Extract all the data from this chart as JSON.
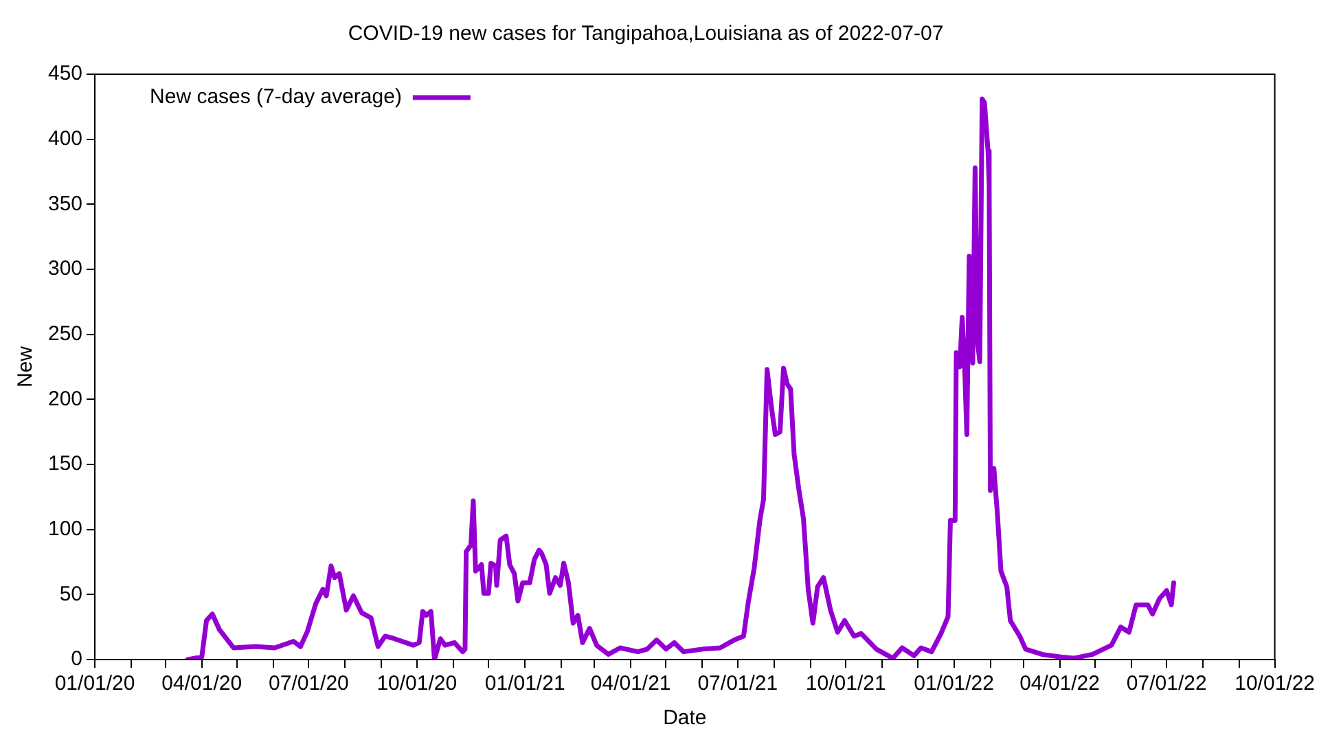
{
  "chart_data": {
    "type": "line",
    "title": "COVID-19 new cases for Tangipahoa,Louisiana as of 2022-07-07",
    "xlabel": "Date",
    "ylabel": "New",
    "x": [
      "2020-03-20",
      "2020-04-01",
      "2020-04-05",
      "2020-04-10",
      "2020-04-16",
      "2020-04-28",
      "2020-05-17",
      "2020-06-02",
      "2020-06-18",
      "2020-06-24",
      "2020-06-30",
      "2020-07-07",
      "2020-07-13",
      "2020-07-16",
      "2020-07-20",
      "2020-07-23",
      "2020-07-27",
      "2020-08-02",
      "2020-08-08",
      "2020-08-15",
      "2020-08-23",
      "2020-08-29",
      "2020-09-04",
      "2020-09-12",
      "2020-09-28",
      "2020-10-03",
      "2020-10-06",
      "2020-10-09",
      "2020-10-13",
      "2020-10-16",
      "2020-10-21",
      "2020-10-25",
      "2020-11-02",
      "2020-11-09",
      "2020-11-11",
      "2020-11-12",
      "2020-11-16",
      "2020-11-18",
      "2020-11-20",
      "2020-11-25",
      "2020-11-27",
      "2020-12-01",
      "2020-12-03",
      "2020-12-07",
      "2020-12-08",
      "2020-12-11",
      "2020-12-16",
      "2020-12-19",
      "2020-12-23",
      "2020-12-26",
      "2020-12-30",
      "2021-01-05",
      "2021-01-09",
      "2021-01-13",
      "2021-01-15",
      "2021-01-19",
      "2021-01-22",
      "2021-01-27",
      "2021-01-31",
      "2021-02-03",
      "2021-02-07",
      "2021-02-11",
      "2021-02-15",
      "2021-02-19",
      "2021-02-25",
      "2021-03-03",
      "2021-03-13",
      "2021-03-23",
      "2021-04-07",
      "2021-04-15",
      "2021-04-23",
      "2021-05-01",
      "2021-05-08",
      "2021-05-16",
      "2021-06-01",
      "2021-06-16",
      "2021-06-28",
      "2021-07-06",
      "2021-07-10",
      "2021-07-15",
      "2021-07-20",
      "2021-07-23",
      "2021-07-26",
      "2021-07-30",
      "2021-08-02",
      "2021-08-06",
      "2021-08-09",
      "2021-08-12",
      "2021-08-15",
      "2021-08-18",
      "2021-08-22",
      "2021-08-26",
      "2021-08-30",
      "2021-09-03",
      "2021-09-07",
      "2021-09-12",
      "2021-09-18",
      "2021-09-24",
      "2021-09-30",
      "2021-10-08",
      "2021-10-14",
      "2021-10-27",
      "2021-11-10",
      "2021-11-18",
      "2021-11-28",
      "2021-12-04",
      "2021-12-13",
      "2021-12-21",
      "2021-12-27",
      "2021-12-29",
      "2022-01-02",
      "2022-01-03",
      "2022-01-06",
      "2022-01-08",
      "2022-01-10",
      "2022-01-12",
      "2022-01-14",
      "2022-01-17",
      "2022-01-19",
      "2022-01-21",
      "2022-01-23",
      "2022-01-25",
      "2022-01-27",
      "2022-01-30",
      "2022-01-31",
      "2022-02-01",
      "2022-02-04",
      "2022-02-07",
      "2022-02-10",
      "2022-02-15",
      "2022-02-18",
      "2022-02-26",
      "2022-03-03",
      "2022-03-17",
      "2022-04-02",
      "2022-04-13",
      "2022-04-29",
      "2022-05-15",
      "2022-05-23",
      "2022-05-30",
      "2022-06-05",
      "2022-06-15",
      "2022-06-19",
      "2022-06-25",
      "2022-07-01",
      "2022-07-05",
      "2022-07-07"
    ],
    "series": [
      {
        "name": "New cases (7-day average)",
        "color": "#9400d3",
        "values": [
          0,
          2,
          30,
          35,
          23,
          9,
          10,
          9,
          14,
          10,
          22,
          43,
          54,
          49,
          72,
          63,
          66,
          38,
          49,
          36,
          32,
          10,
          18,
          16,
          11,
          13,
          37,
          34,
          37,
          0,
          16,
          11,
          13,
          6,
          8,
          83,
          88,
          122,
          68,
          73,
          51,
          51,
          74,
          72,
          57,
          92,
          95,
          73,
          66,
          45,
          59,
          59,
          77,
          84,
          82,
          73,
          51,
          63,
          57,
          74,
          59,
          28,
          34,
          13,
          24,
          11,
          4,
          9,
          6,
          8,
          15,
          8,
          13,
          6,
          8,
          9,
          15,
          18,
          44,
          70,
          108,
          123,
          223,
          192,
          173,
          175,
          224,
          212,
          208,
          158,
          131,
          108,
          54,
          28,
          56,
          63,
          38,
          21,
          30,
          18,
          20,
          8,
          1,
          9,
          3,
          9,
          6,
          20,
          33,
          107,
          107,
          236,
          225,
          263,
          228,
          173,
          310,
          228,
          378,
          245,
          229,
          431,
          428,
          391,
          365,
          130,
          147,
          112,
          68,
          56,
          30,
          18,
          8,
          4,
          2,
          1,
          4,
          11,
          25,
          21,
          42,
          42,
          35,
          47,
          53,
          42,
          59
        ]
      }
    ],
    "xlim": [
      "2020-01-01",
      "2022-10-01"
    ],
    "xticks": [
      {
        "value": "2020-01-01",
        "label": "01/01/20"
      },
      {
        "value": "2020-02-01",
        "label": null
      },
      {
        "value": "2020-03-01",
        "label": null
      },
      {
        "value": "2020-04-01",
        "label": "04/01/20"
      },
      {
        "value": "2020-05-01",
        "label": null
      },
      {
        "value": "2020-06-01",
        "label": null
      },
      {
        "value": "2020-07-01",
        "label": "07/01/20"
      },
      {
        "value": "2020-08-01",
        "label": null
      },
      {
        "value": "2020-09-01",
        "label": null
      },
      {
        "value": "2020-10-01",
        "label": "10/01/20"
      },
      {
        "value": "2020-11-01",
        "label": null
      },
      {
        "value": "2020-12-01",
        "label": null
      },
      {
        "value": "2021-01-01",
        "label": "01/01/21"
      },
      {
        "value": "2021-02-01",
        "label": null
      },
      {
        "value": "2021-03-01",
        "label": null
      },
      {
        "value": "2021-04-01",
        "label": "04/01/21"
      },
      {
        "value": "2021-05-01",
        "label": null
      },
      {
        "value": "2021-06-01",
        "label": null
      },
      {
        "value": "2021-07-01",
        "label": "07/01/21"
      },
      {
        "value": "2021-08-01",
        "label": null
      },
      {
        "value": "2021-09-01",
        "label": null
      },
      {
        "value": "2021-10-01",
        "label": "10/01/21"
      },
      {
        "value": "2021-11-01",
        "label": null
      },
      {
        "value": "2021-12-01",
        "label": null
      },
      {
        "value": "2022-01-01",
        "label": "01/01/22"
      },
      {
        "value": "2022-02-01",
        "label": null
      },
      {
        "value": "2022-03-01",
        "label": null
      },
      {
        "value": "2022-04-01",
        "label": "04/01/22"
      },
      {
        "value": "2022-05-01",
        "label": null
      },
      {
        "value": "2022-06-01",
        "label": null
      },
      {
        "value": "2022-07-01",
        "label": "07/01/22"
      },
      {
        "value": "2022-08-01",
        "label": null
      },
      {
        "value": "2022-09-01",
        "label": null
      },
      {
        "value": "2022-10-01",
        "label": "10/01/22"
      }
    ],
    "ylim": [
      0,
      450
    ],
    "yticks": [
      0,
      50,
      100,
      150,
      200,
      250,
      300,
      350,
      400,
      450
    ],
    "grid": false,
    "legend": "top left",
    "marker": "none",
    "line_style": "solid"
  }
}
